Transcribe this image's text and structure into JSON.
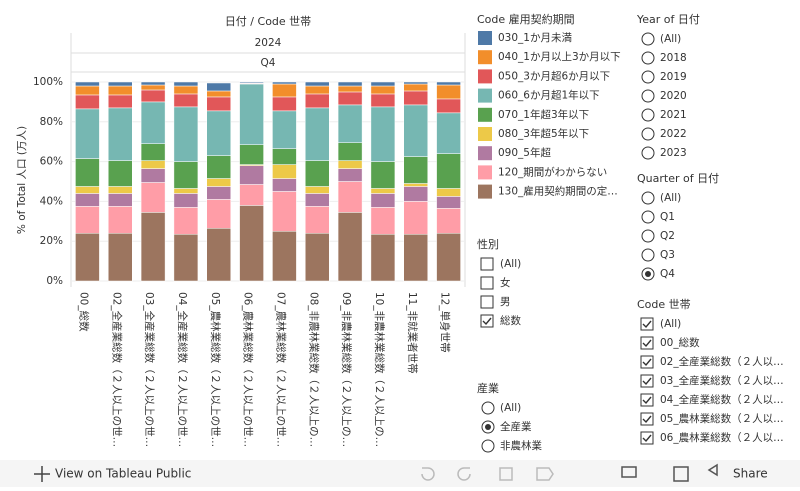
{
  "chart_data": {
    "type": "stacked-bar",
    "header": [
      "日付 / Code 世帯",
      "2024",
      "Q4"
    ],
    "y_label": "% of Total 人口 (万人)",
    "legend_title": "Code 雇用契約期間",
    "categories": [
      "00_総数",
      "02_全産業総数（２人以上の世…",
      "03_全産業総数（２人以上の世…",
      "04_全産業総数（２人以上の世…",
      "05_農林業総数（２人以上の世…",
      "06_農林業総数（２人以上の世…",
      "07_農林業総数（２人以上の世…",
      "08_非農林業総数（２人以上の…",
      "09_非農林業総数（２人以上の…",
      "10_非農林業総数（２人以上の…",
      "11_非就業者世帯",
      "12_単身世帯"
    ],
    "series": [
      {
        "name": "130_雇用契約期間の定…",
        "color": "#9c755f",
        "values": [
          24,
          24,
          34.5,
          23.5,
          26.5,
          38,
          25,
          24,
          34.5,
          23.5,
          23.5,
          24
        ]
      },
      {
        "name": "120_期間がわからない",
        "color": "#ff9da7",
        "values": [
          13.5,
          13.5,
          15,
          13.5,
          14.5,
          10.5,
          20,
          13.5,
          15.5,
          13.5,
          16.5,
          12.5
        ]
      },
      {
        "name": "090_5年超",
        "color": "#b07aa1",
        "values": [
          6.5,
          6.5,
          7,
          7,
          6.5,
          9.5,
          6.5,
          6.5,
          6.5,
          7,
          7.5,
          6
        ]
      },
      {
        "name": "080_3年超5年以下",
        "color": "#edc948",
        "values": [
          3.5,
          3.5,
          4,
          2.5,
          4,
          0.5,
          7,
          3.5,
          4,
          2.5,
          1.5,
          4
        ]
      },
      {
        "name": "070_1年超3年以下",
        "color": "#59a14f",
        "values": [
          14,
          13,
          8.5,
          13.5,
          11.5,
          10,
          8,
          13,
          9,
          13.5,
          13.5,
          17.5
        ]
      },
      {
        "name": "060_6か月超1年以下",
        "color": "#76b7b2",
        "values": [
          25,
          26.5,
          21,
          27.5,
          22.5,
          30.5,
          19,
          26.5,
          19,
          27.5,
          26,
          20.5
        ]
      },
      {
        "name": "050_3か月超6か月以下",
        "color": "#e15759",
        "values": [
          7,
          6.5,
          6,
          6.5,
          7,
          0.3,
          7,
          7,
          6.5,
          6.5,
          7,
          7
        ]
      },
      {
        "name": "040_1か月以上3か月以下",
        "color": "#f28e2b",
        "values": [
          4.5,
          4.5,
          2.5,
          4,
          3,
          0.2,
          6.5,
          4,
          3,
          4,
          3.5,
          7
        ]
      },
      {
        "name": "030_1か月未満",
        "color": "#4e79a7",
        "values": [
          2,
          2,
          1.5,
          2,
          4,
          0.5,
          1,
          2,
          2,
          2,
          1,
          1.5
        ]
      }
    ],
    "ylim": [
      0,
      100
    ],
    "yticks": [
      {
        "value": 0,
        "label": "0%"
      },
      {
        "value": 20,
        "label": "20%"
      },
      {
        "value": 40,
        "label": "40%"
      },
      {
        "value": 60,
        "label": "60%"
      },
      {
        "value": 80,
        "label": "80%"
      },
      {
        "value": 100,
        "label": "100%"
      }
    ]
  },
  "filters": [
    {
      "title": "Year of 日付",
      "kind": "radio",
      "options": [
        "(All)",
        "2018",
        "2019",
        "2020",
        "2021",
        "2022",
        "2023"
      ]
    },
    {
      "title": "Quarter of 日付",
      "kind": "radio",
      "options": [
        "(All)",
        "Q1",
        "Q2",
        "Q3",
        "Q4"
      ],
      "selected": [
        4
      ]
    },
    {
      "title": "性別",
      "kind": "checkbox",
      "options": [
        "(All)",
        "女",
        "男",
        "総数"
      ],
      "selected": [
        3
      ]
    },
    {
      "title": "産業",
      "kind": "radio",
      "options": [
        "(All)",
        "全産業",
        "非農林業"
      ],
      "selected": [
        1
      ]
    },
    {
      "title": "Code 世帯",
      "kind": "checkbox",
      "options": [
        "(All)",
        "00_総数",
        "02_全産業総数（２人以…",
        "03_全産業総数（２人以…",
        "04_全産業総数（２人以…",
        "05_農林業総数（２人以…",
        "06_農林業総数（２人以…"
      ],
      "selected": [
        0,
        1,
        2,
        3,
        4,
        5,
        6
      ]
    }
  ],
  "footer": {
    "link": "View on Tableau Public",
    "share": "Share"
  }
}
